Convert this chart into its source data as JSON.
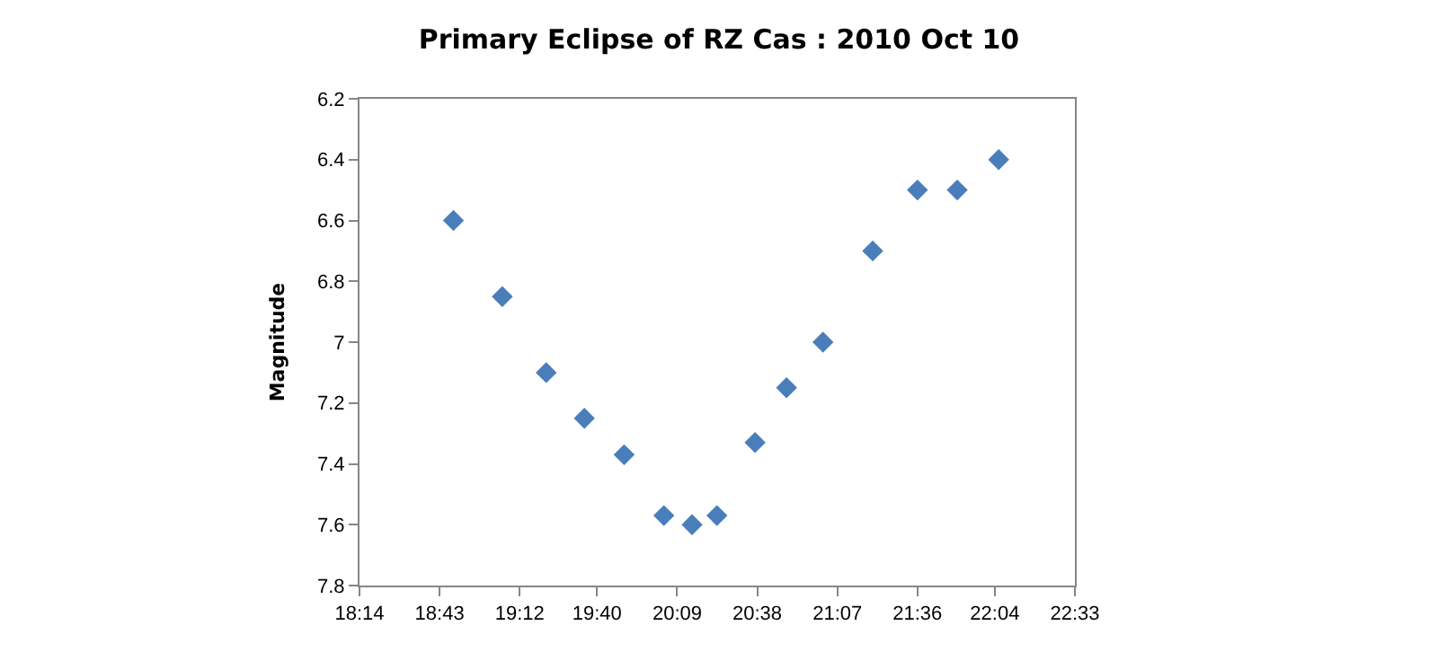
{
  "chart_data": {
    "type": "scatter",
    "title": "Primary Eclipse of RZ Cas : 2010 Oct 10",
    "ylabel": "Magnitude",
    "x": [
      18.8,
      19.095,
      19.36,
      19.59,
      19.83,
      20.07,
      20.24,
      20.39,
      20.62,
      20.81,
      21.03,
      21.33,
      21.6,
      21.84,
      22.09
    ],
    "series": [
      {
        "color": "#4a7ebb",
        "values": [
          6.6,
          6.85,
          7.1,
          7.25,
          7.37,
          7.57,
          7.6,
          7.57,
          7.33,
          7.15,
          7.0,
          6.7,
          6.5,
          6.5,
          6.4
        ]
      }
    ],
    "xlim": [
      18.2333,
      22.55
    ],
    "xticks": [
      {
        "value": 18.2333,
        "label": "18:14"
      },
      {
        "value": 18.7167,
        "label": "18:43"
      },
      {
        "value": 19.2,
        "label": "19:12"
      },
      {
        "value": 19.6667,
        "label": "19:40"
      },
      {
        "value": 20.15,
        "label": "20:09"
      },
      {
        "value": 20.6333,
        "label": "20:38"
      },
      {
        "value": 21.1167,
        "label": "21:07"
      },
      {
        "value": 21.6,
        "label": "21:36"
      },
      {
        "value": 22.0667,
        "label": "22:04"
      },
      {
        "value": 22.55,
        "label": "22:33"
      }
    ],
    "ylim": [
      7.8,
      6.2
    ],
    "yticks": [
      6.2,
      6.4,
      6.6,
      6.8,
      7,
      7.2,
      7.4,
      7.6,
      7.8
    ],
    "marker": "diamond",
    "grid": false
  }
}
